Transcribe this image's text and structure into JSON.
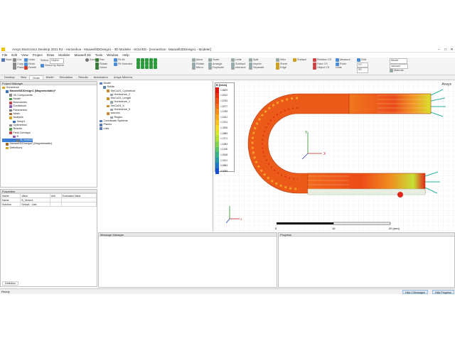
{
  "window": {
    "title": "Ansys Electronics Desktop 2021 R2 - Horseshoe - Maxwell3DDesign1 - 3D Modeler - SOLVED - [Horseshoe - Maxwell3DDesign1 - Modeler]"
  },
  "menu": [
    "File",
    "Edit",
    "View",
    "Project",
    "Draw",
    "Modeler",
    "Maxwell 3D",
    "Tools",
    "Window",
    "Help"
  ],
  "ribbon": {
    "file_group": [
      "Save",
      "Cut",
      "Copy",
      "Paste",
      "Undo",
      "Redo",
      "Delete"
    ],
    "select_group": {
      "select_label": "Select:",
      "select_value": "Object",
      "select_by_name": "Select by Name"
    },
    "zoom_label": "Zoom",
    "view_group": [
      "Pan",
      "Rotate",
      "Orient",
      "Fit All",
      "Fit Selected"
    ],
    "edit_group": [
      "Move",
      "Rotate",
      "Mirror",
      "Scale",
      "Arrange",
      "Duplicate"
    ],
    "boolean_group": [
      "Unite",
      "Subtract",
      "Intersect",
      "Split",
      "Imprint",
      "Separate"
    ],
    "sketch_group": [
      "Wire",
      "Sheet",
      "Edge"
    ],
    "cs_group": [
      "Surface",
      "Relative CS",
      "Face CS",
      "Object CS"
    ],
    "measure_label": "Measure",
    "grid_label": "Grid",
    "ruler_label": "Ruler",
    "units_label": "Units",
    "plane_value": "XY",
    "dim_value": "3D",
    "model_value": "Model",
    "material_value": "vacuum",
    "material_label": "Material"
  },
  "tabs": [
    "Desktop",
    "View",
    "Draw",
    "Model",
    "Simulation",
    "Results",
    "Automation",
    "Ansys Minerva"
  ],
  "active_tab": "Draw",
  "project_manager": {
    "title": "Project Manager",
    "items": [
      {
        "label": "Horseshoe",
        "indent": 0
      },
      {
        "label": "Maxwell3DDesign1 (Magnetostatic)*",
        "indent": 1,
        "bold": true
      },
      {
        "label": "3D Components",
        "indent": 2
      },
      {
        "label": "Model",
        "indent": 2
      },
      {
        "label": "Boundaries",
        "indent": 2
      },
      {
        "label": "Excitations",
        "indent": 2
      },
      {
        "label": "Parameters",
        "indent": 2
      },
      {
        "label": "Mesh",
        "indent": 2
      },
      {
        "label": "Analysis",
        "indent": 2
      },
      {
        "label": "Setup1",
        "indent": 3
      },
      {
        "label": "Optimetrics",
        "indent": 2
      },
      {
        "label": "Results",
        "indent": 2
      },
      {
        "label": "Field Overlays",
        "indent": 2
      },
      {
        "label": "B",
        "indent": 3
      },
      {
        "label": "B_Vector1",
        "indent": 4,
        "selected": true
      },
      {
        "label": "Maxwell3DDesign2 (Magnetostatic)",
        "indent": 1
      },
      {
        "label": "Definitions",
        "indent": 1
      }
    ]
  },
  "properties": {
    "title": "Properties",
    "headers": [
      "Name",
      "Value",
      "Unit",
      "Evaluated Value"
    ],
    "rows": [
      [
        "Name",
        "B_Vector1",
        "",
        ""
      ],
      [
        "Solution",
        "Setup1 : Last",
        "",
        ""
      ]
    ],
    "footer_tab": "Definition"
  },
  "model_tree": {
    "items": [
      {
        "label": "Model",
        "indent": 0
      },
      {
        "label": "Solids",
        "indent": 1
      },
      {
        "label": "SmCo24_Cylindrical",
        "indent": 2
      },
      {
        "label": "Horseshoe_2",
        "indent": 3
      },
      {
        "label": "SmCo24_Length",
        "indent": 2
      },
      {
        "label": "Horseshoe_1",
        "indent": 3
      },
      {
        "label": "SmCo24_X",
        "indent": 2
      },
      {
        "label": "Horseshoe_3",
        "indent": 3
      },
      {
        "label": "vacuum",
        "indent": 2
      },
      {
        "label": "Region",
        "indent": 3
      },
      {
        "label": "Coordinate Systems",
        "indent": 0
      },
      {
        "label": "Planes",
        "indent": 0
      },
      {
        "label": "Lists",
        "indent": 0
      }
    ]
  },
  "legend": {
    "title": "B [tesla]",
    "values": [
      "1.6829",
      "1.6312",
      "1.5794",
      "1.5277",
      "1.4759",
      "1.4241",
      "1.3724",
      "1.3206",
      "1.2689",
      "1.2171",
      "1.1653",
      "1.1136",
      "1.0618",
      "1.0101",
      "0.9583",
      "0.9065"
    ],
    "colors": [
      "#e0140a",
      "#e8300c",
      "#ef4c10",
      "#f46a14",
      "#f88a18",
      "#fba81c",
      "#fcc320",
      "#f4dc24",
      "#d8e628",
      "#b0e036",
      "#84d44c",
      "#58c468",
      "#36b288",
      "#2498ac",
      "#1a78c8",
      "#1450d4"
    ]
  },
  "brand": "Ansys",
  "scale_ruler": {
    "ticks": [
      "0",
      "10",
      "20 (mm)"
    ]
  },
  "axis_labels": {
    "x": "X",
    "y": "Y",
    "z": "Z"
  },
  "message_manager": {
    "title": "Message Manager"
  },
  "progress": {
    "title": "Progress"
  },
  "status": {
    "text": "Ready",
    "hide_messages": "Hide 3 Messages",
    "hide_progress": "Hide Progress"
  }
}
